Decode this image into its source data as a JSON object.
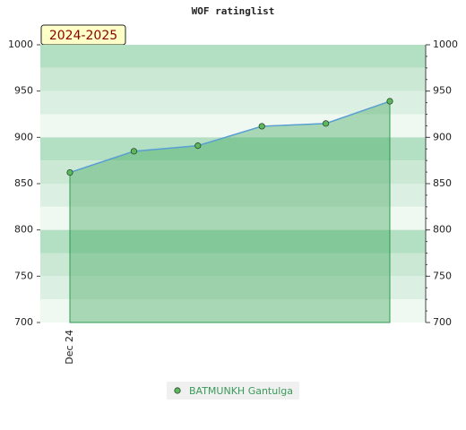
{
  "chart_data": {
    "type": "line",
    "title": "WOF ratinglist",
    "season": "2024-2025",
    "categories": [
      "Dec 24",
      null,
      null,
      null,
      null,
      null
    ],
    "series": [
      {
        "name": "BATMUNKH Gantulga",
        "color": "#5a9fd4",
        "marker_color": "#5cb85c",
        "values": [
          862,
          885,
          891,
          912,
          915,
          939
        ]
      }
    ],
    "ylim": [
      700,
      1000
    ],
    "yticks": [
      700,
      750,
      800,
      850,
      900,
      950,
      1000
    ],
    "y2lim": [
      700,
      1000
    ],
    "y2ticks": [
      700,
      750,
      800,
      850,
      900,
      950,
      1000
    ],
    "legend": "bottom"
  }
}
